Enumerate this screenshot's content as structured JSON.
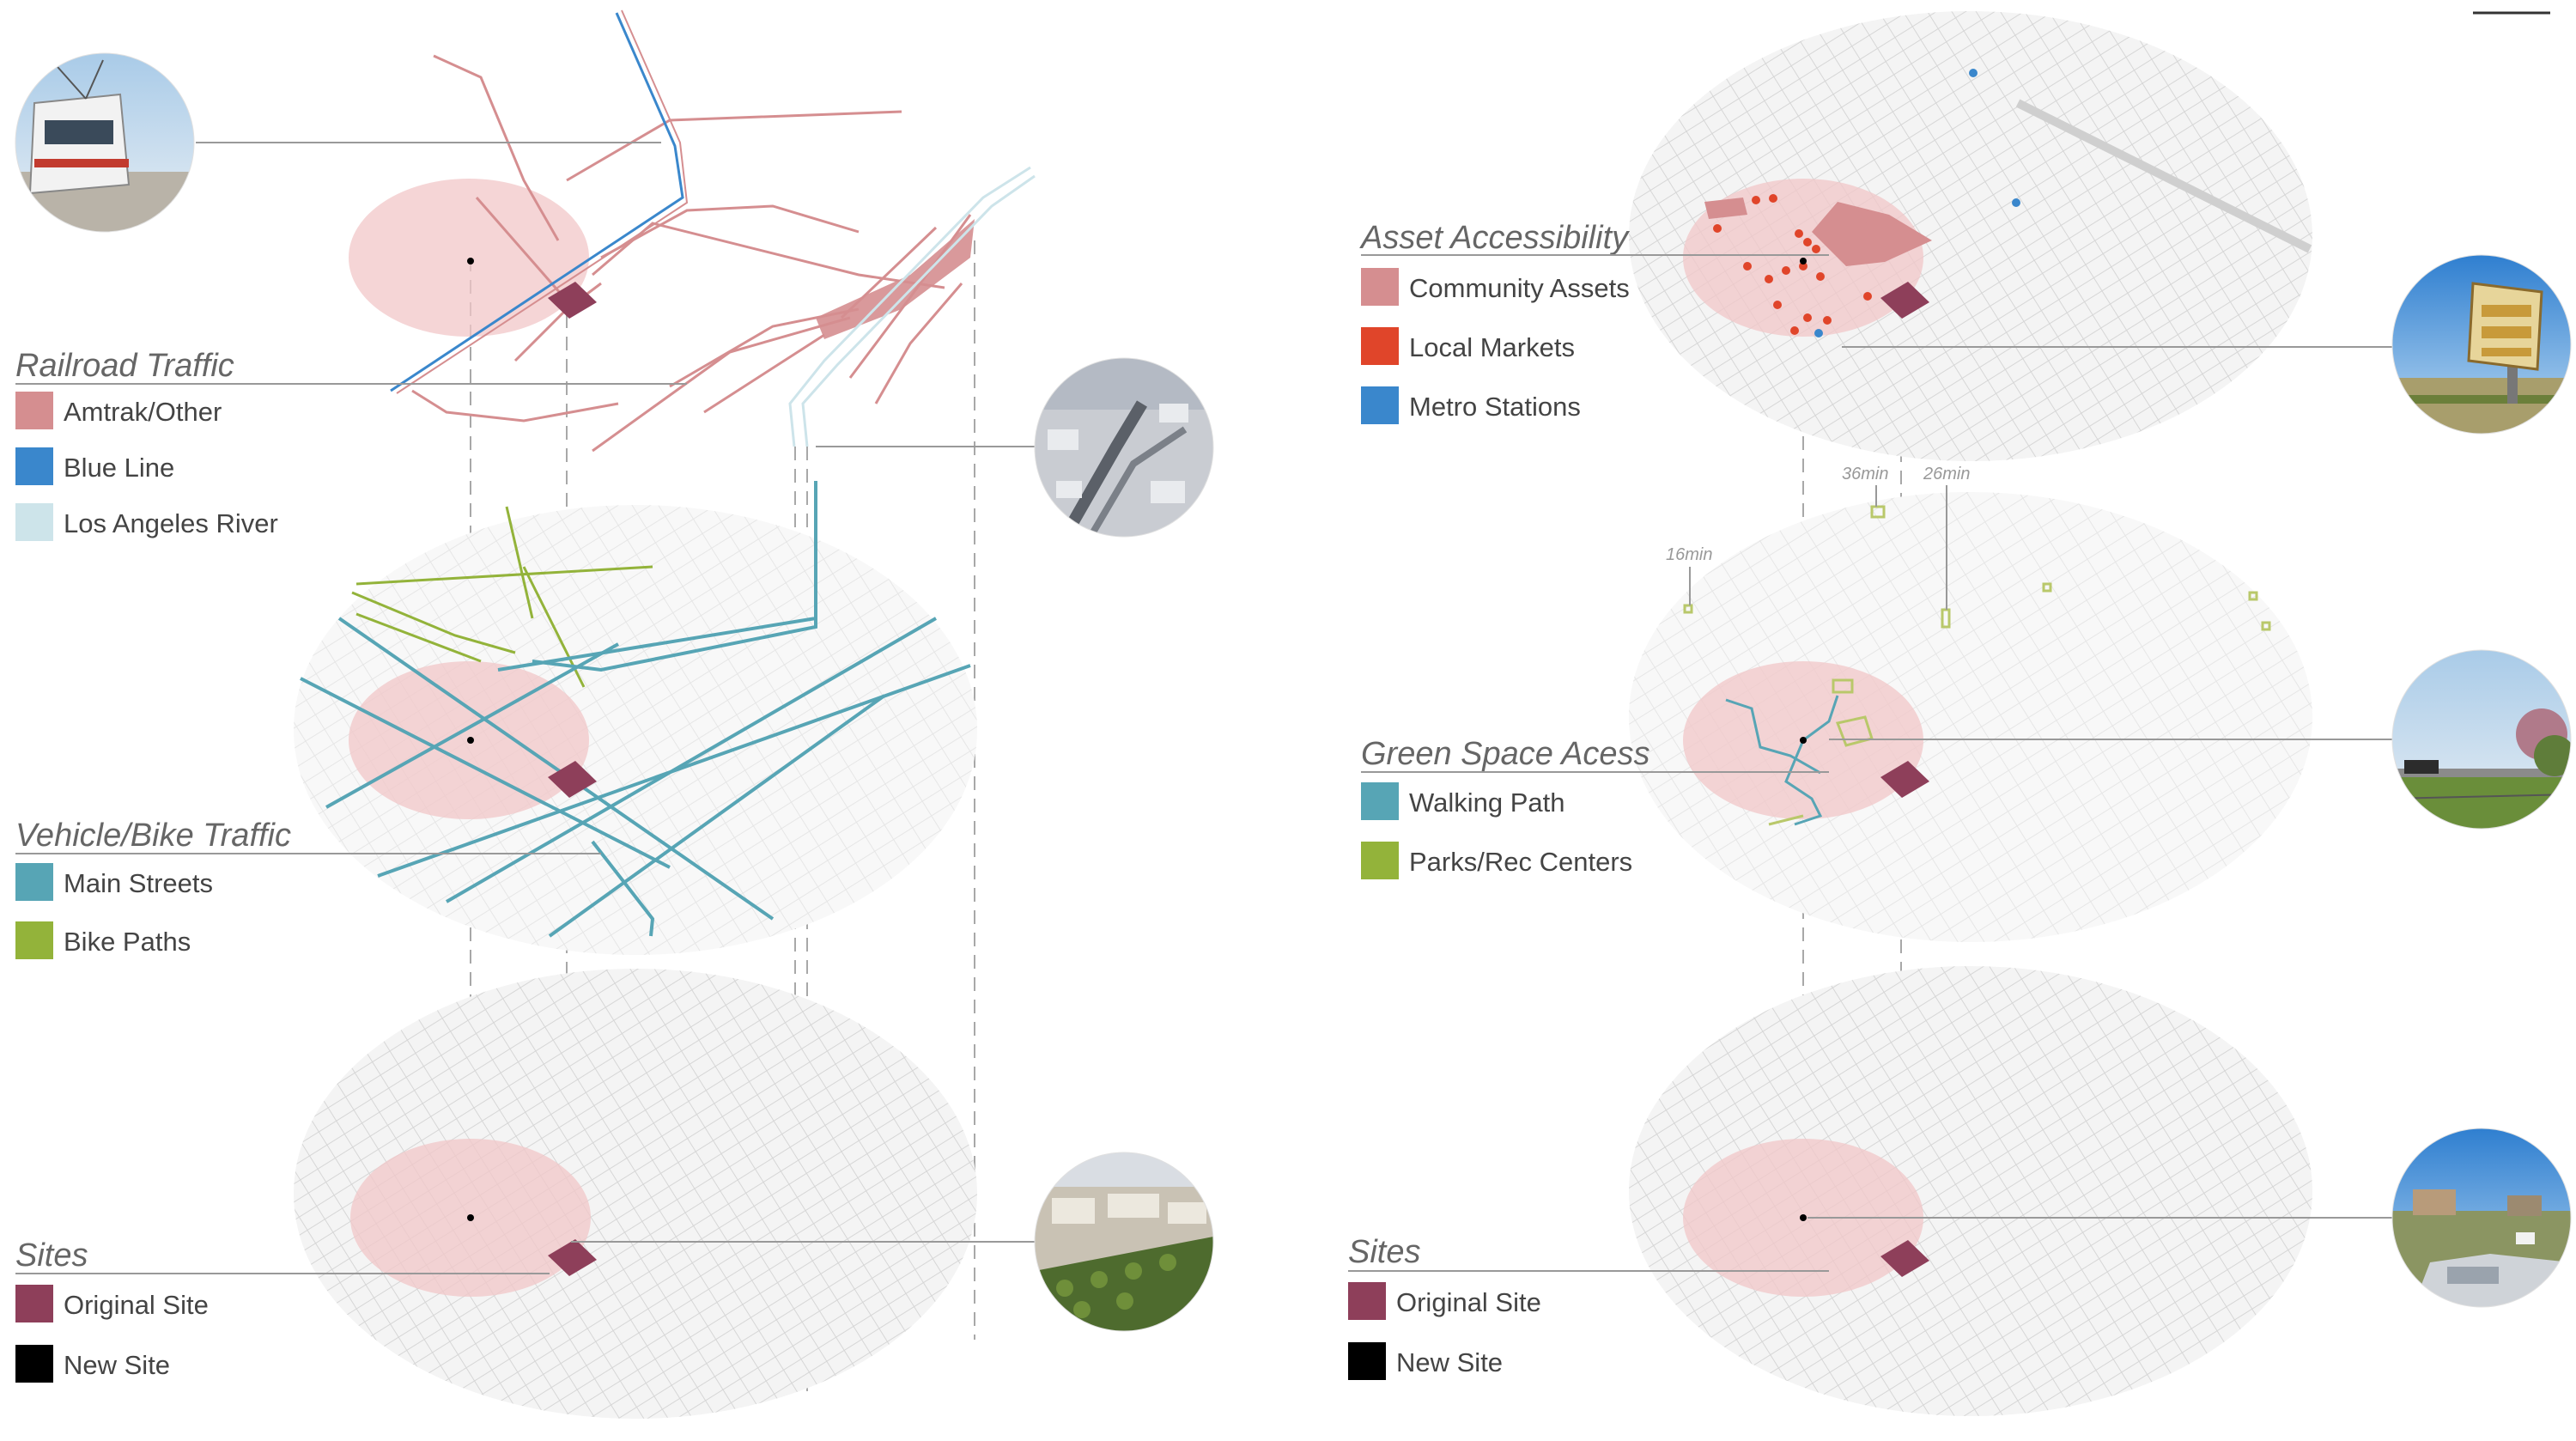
{
  "colors": {
    "amtrak": "#d58e90",
    "blue_line": "#3a87cc",
    "river": "#cde4ea",
    "main_streets": "#57a5b5",
    "bike_paths": "#93b33a",
    "community_assets": "#d58e90",
    "local_markets": "#e0452a",
    "metro_stations": "#3a87cc",
    "walking_path": "#57a5b5",
    "parks": "#93b33a",
    "original_site": "#8e3f5a",
    "new_site": "#000000",
    "halo": "#f1c7c8",
    "map": "#dddddd"
  },
  "left": {
    "railroad": {
      "title": "Railroad Traffic",
      "items": [
        {
          "label": "Amtrak/Other",
          "color": "#d58e90"
        },
        {
          "label": "Blue Line",
          "color": "#3a87cc"
        },
        {
          "label": "Los Angeles River",
          "color": "#cde4ea"
        }
      ]
    },
    "vehicle": {
      "title": "Vehicle/Bike Traffic",
      "items": [
        {
          "label": "Main Streets",
          "color": "#57a5b5"
        },
        {
          "label": "Bike Paths",
          "color": "#93b33a"
        }
      ]
    },
    "sites": {
      "title": "Sites",
      "items": [
        {
          "label": "Original Site",
          "color": "#8e3f5a"
        },
        {
          "label": "New Site",
          "color": "#000000"
        }
      ]
    }
  },
  "right": {
    "asset": {
      "title": "Asset Accessibility",
      "items": [
        {
          "label": "Community Assets",
          "color": "#d58e90"
        },
        {
          "label": "Local Markets",
          "color": "#e0452a"
        },
        {
          "label": "Metro Stations",
          "color": "#3a87cc"
        }
      ]
    },
    "green": {
      "title": "Green Space Acess",
      "items": [
        {
          "label": "Walking Path",
          "color": "#57a5b5"
        },
        {
          "label": "Parks/Rec Centers",
          "color": "#93b33a"
        }
      ],
      "times": [
        "36min",
        "26min",
        "16min"
      ]
    },
    "sites": {
      "title": "Sites",
      "items": [
        {
          "label": "Original Site",
          "color": "#8e3f5a"
        },
        {
          "label": "New Site",
          "color": "#000000"
        }
      ]
    }
  },
  "photos": {
    "train": "train-photo",
    "freeway": "freeway-aerial-photo",
    "aerial_site": "aerial-site-photo",
    "swap_meet": "swap-meet-photo",
    "park": "park-photo",
    "lot": "vacant-lot-photo"
  }
}
